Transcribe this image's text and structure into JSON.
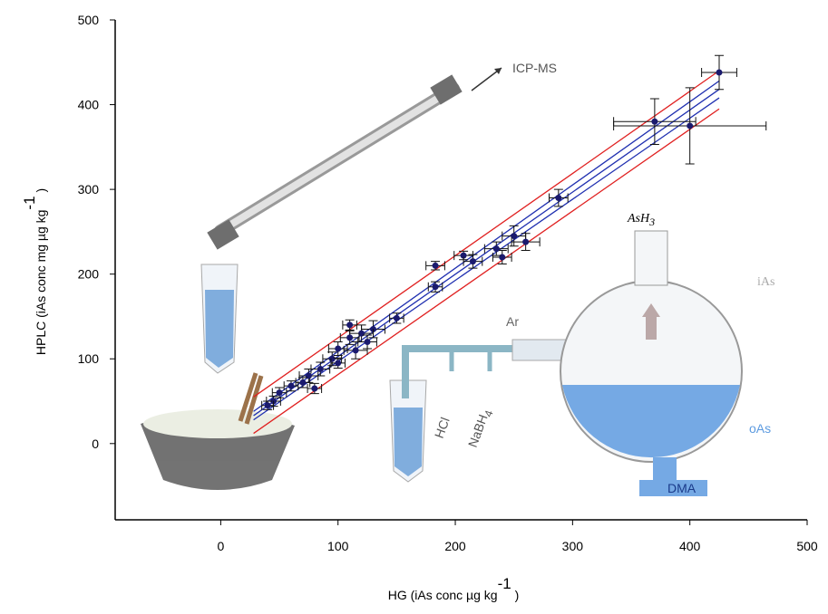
{
  "chart_data": {
    "type": "scatter",
    "xlabel": "HG (iAs conc µg kg",
    "xlabel_sup": "-1",
    "xlabel_end": " )",
    "ylabel": "HPLC (iAs conc mg µg kg",
    "ylabel_sup": "-1",
    "ylabel_end": " )",
    "xlim": [
      -90,
      500
    ],
    "ylim": [
      -90,
      500
    ],
    "xticks": [
      0,
      100,
      200,
      300,
      400,
      500
    ],
    "yticks": [
      0,
      100,
      200,
      300,
      400,
      500
    ],
    "series": [
      {
        "color": "#1a1a6e",
        "x": [
          425,
          370,
          400,
          288,
          250,
          260,
          240,
          235,
          207,
          215,
          183,
          183,
          150,
          130,
          120,
          110,
          115,
          100,
          95,
          100,
          85,
          75,
          70,
          80,
          60,
          50,
          45,
          40,
          110,
          125
        ],
        "values": [
          438,
          380,
          375,
          290,
          245,
          238,
          220,
          230,
          222,
          215,
          210,
          185,
          148,
          135,
          130,
          125,
          110,
          112,
          100,
          95,
          88,
          80,
          72,
          65,
          68,
          60,
          50,
          45,
          140,
          120
        ],
        "xerr": [
          15,
          35,
          65,
          8,
          10,
          12,
          8,
          10,
          8,
          8,
          8,
          6,
          6,
          10,
          10,
          8,
          10,
          8,
          8,
          6,
          8,
          8,
          6,
          6,
          6,
          6,
          6,
          5,
          6,
          8
        ],
        "yerr": [
          20,
          27,
          45,
          10,
          12,
          10,
          8,
          8,
          5,
          8,
          5,
          6,
          6,
          10,
          10,
          8,
          10,
          8,
          8,
          6,
          8,
          8,
          6,
          6,
          6,
          6,
          6,
          5,
          6,
          8
        ]
      }
    ],
    "lines": [
      {
        "color": "#1f2fb0",
        "x": [
          28,
          425
        ],
        "values": [
          33,
          418
        ]
      },
      {
        "color": "#1f2fb0",
        "x": [
          28,
          425
        ],
        "values": [
          38,
          428
        ]
      },
      {
        "color": "#1f2fb0",
        "x": [
          28,
          425
        ],
        "values": [
          28,
          408
        ]
      },
      {
        "color": "#e02020",
        "x": [
          28,
          425
        ],
        "values": [
          55,
          440
        ]
      },
      {
        "color": "#e02020",
        "x": [
          28,
          425
        ],
        "values": [
          12,
          395
        ]
      }
    ],
    "annotations": {
      "icp": "ICP-MS",
      "ash": "AsH",
      "ash_sub": "3",
      "ias": "iAs",
      "ar": "Ar",
      "hcl": "HCl",
      "nabh": "NaBH",
      "nabh_sub": "4",
      "oas": "oAs",
      "dma": "DMA"
    }
  }
}
